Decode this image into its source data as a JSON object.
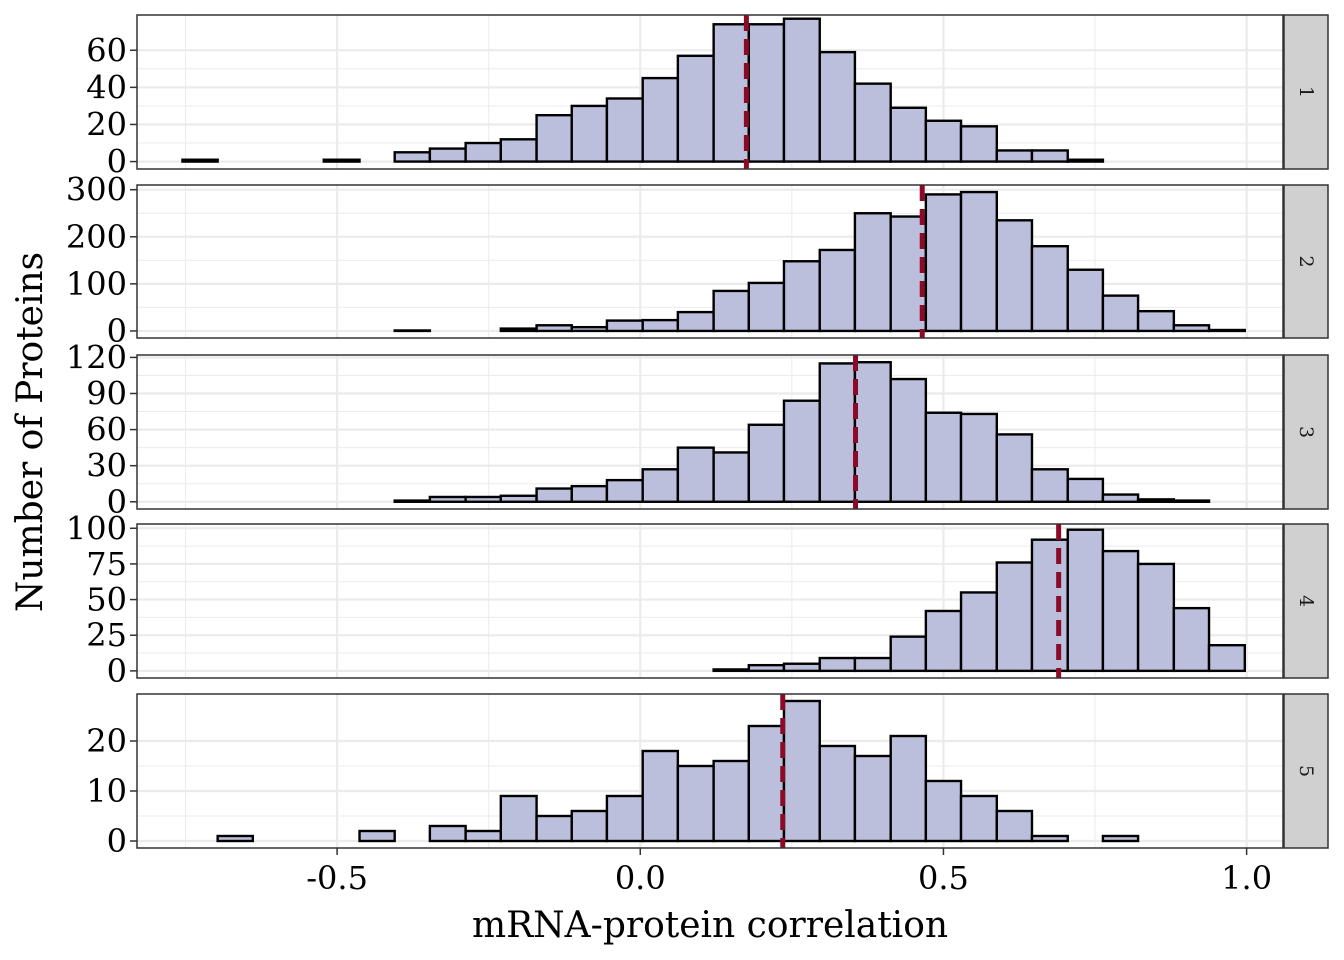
{
  "chart_data": {
    "type": "histogram",
    "facet_layout": "rows",
    "xlabel": "mRNA-protein correlation",
    "ylabel": "Number of Proteins",
    "xlim": [
      -0.83,
      1.06
    ],
    "x_ticks": [
      -0.5,
      0.0,
      0.5,
      1.0
    ],
    "x_tick_labels": [
      "-0.5",
      "0.0",
      "0.5",
      "1.0"
    ],
    "bin_edges": [
      -0.755,
      -0.697,
      -0.639,
      -0.58,
      -0.522,
      -0.463,
      -0.405,
      -0.347,
      -0.288,
      -0.23,
      -0.171,
      -0.113,
      -0.055,
      0.004,
      0.062,
      0.121,
      0.179,
      0.237,
      0.296,
      0.354,
      0.413,
      0.471,
      0.529,
      0.588,
      0.646,
      0.705,
      0.763,
      0.821,
      0.88,
      0.938,
      0.997
    ],
    "colors": {
      "bar_fill": "#bcbfdc",
      "bar_stroke": "#000000",
      "median_line": "#8b0a2a",
      "grid": "#ebebeb",
      "strip_fill": "#d0d0d0"
    },
    "grid": true,
    "panels": [
      {
        "strip_label": "1",
        "ylim": [
          -4,
          79
        ],
        "y_ticks": [
          0,
          20,
          40,
          60
        ],
        "y_tick_labels": [
          "0",
          "20",
          "40",
          "60"
        ],
        "median": 0.175,
        "counts": [
          1,
          0,
          0,
          0,
          1,
          0,
          5,
          7,
          10,
          12,
          25,
          30,
          34,
          45,
          57,
          74,
          74,
          77,
          59,
          42,
          29,
          22,
          19,
          6,
          6,
          1,
          0,
          0,
          0,
          0
        ]
      },
      {
        "strip_label": "2",
        "ylim": [
          -15,
          310
        ],
        "y_ticks": [
          0,
          100,
          200,
          300
        ],
        "y_tick_labels": [
          "0",
          "100",
          "200",
          "300"
        ],
        "median": 0.465,
        "counts": [
          0,
          0,
          0,
          0,
          0,
          0,
          1,
          0,
          0,
          5,
          12,
          8,
          22,
          23,
          40,
          85,
          102,
          148,
          172,
          250,
          243,
          290,
          295,
          235,
          180,
          130,
          75,
          42,
          12,
          2
        ]
      },
      {
        "strip_label": "3",
        "ylim": [
          -6,
          122
        ],
        "y_ticks": [
          0,
          30,
          60,
          90,
          120
        ],
        "y_tick_labels": [
          "0",
          "30",
          "60",
          "90",
          "120"
        ],
        "median": 0.355,
        "counts": [
          0,
          0,
          0,
          0,
          0,
          0,
          1,
          4,
          4,
          5,
          11,
          13,
          18,
          27,
          45,
          41,
          64,
          84,
          115,
          116,
          102,
          74,
          73,
          56,
          27,
          19,
          6,
          2,
          1,
          0
        ]
      },
      {
        "strip_label": "4",
        "ylim": [
          -5,
          103
        ],
        "y_ticks": [
          0,
          25,
          50,
          75,
          100
        ],
        "y_tick_labels": [
          "0",
          "25",
          "50",
          "75",
          "100"
        ],
        "median": 0.69,
        "counts": [
          0,
          0,
          0,
          0,
          0,
          0,
          0,
          0,
          0,
          0,
          0,
          0,
          0,
          0,
          0,
          1,
          4,
          5,
          9,
          9,
          24,
          42,
          55,
          76,
          92,
          99,
          84,
          75,
          44,
          18
        ]
      },
      {
        "strip_label": "5",
        "ylim": [
          -1.4,
          29.4
        ],
        "y_ticks": [
          0,
          10,
          20
        ],
        "y_tick_labels": [
          "0",
          "10",
          "20"
        ],
        "median": 0.235,
        "counts": [
          0,
          1,
          0,
          0,
          0,
          2,
          0,
          3,
          2,
          9,
          5,
          6,
          9,
          18,
          15,
          16,
          23,
          28,
          19,
          17,
          21,
          12,
          9,
          6,
          1,
          0,
          1,
          0,
          0,
          0
        ]
      }
    ]
  }
}
